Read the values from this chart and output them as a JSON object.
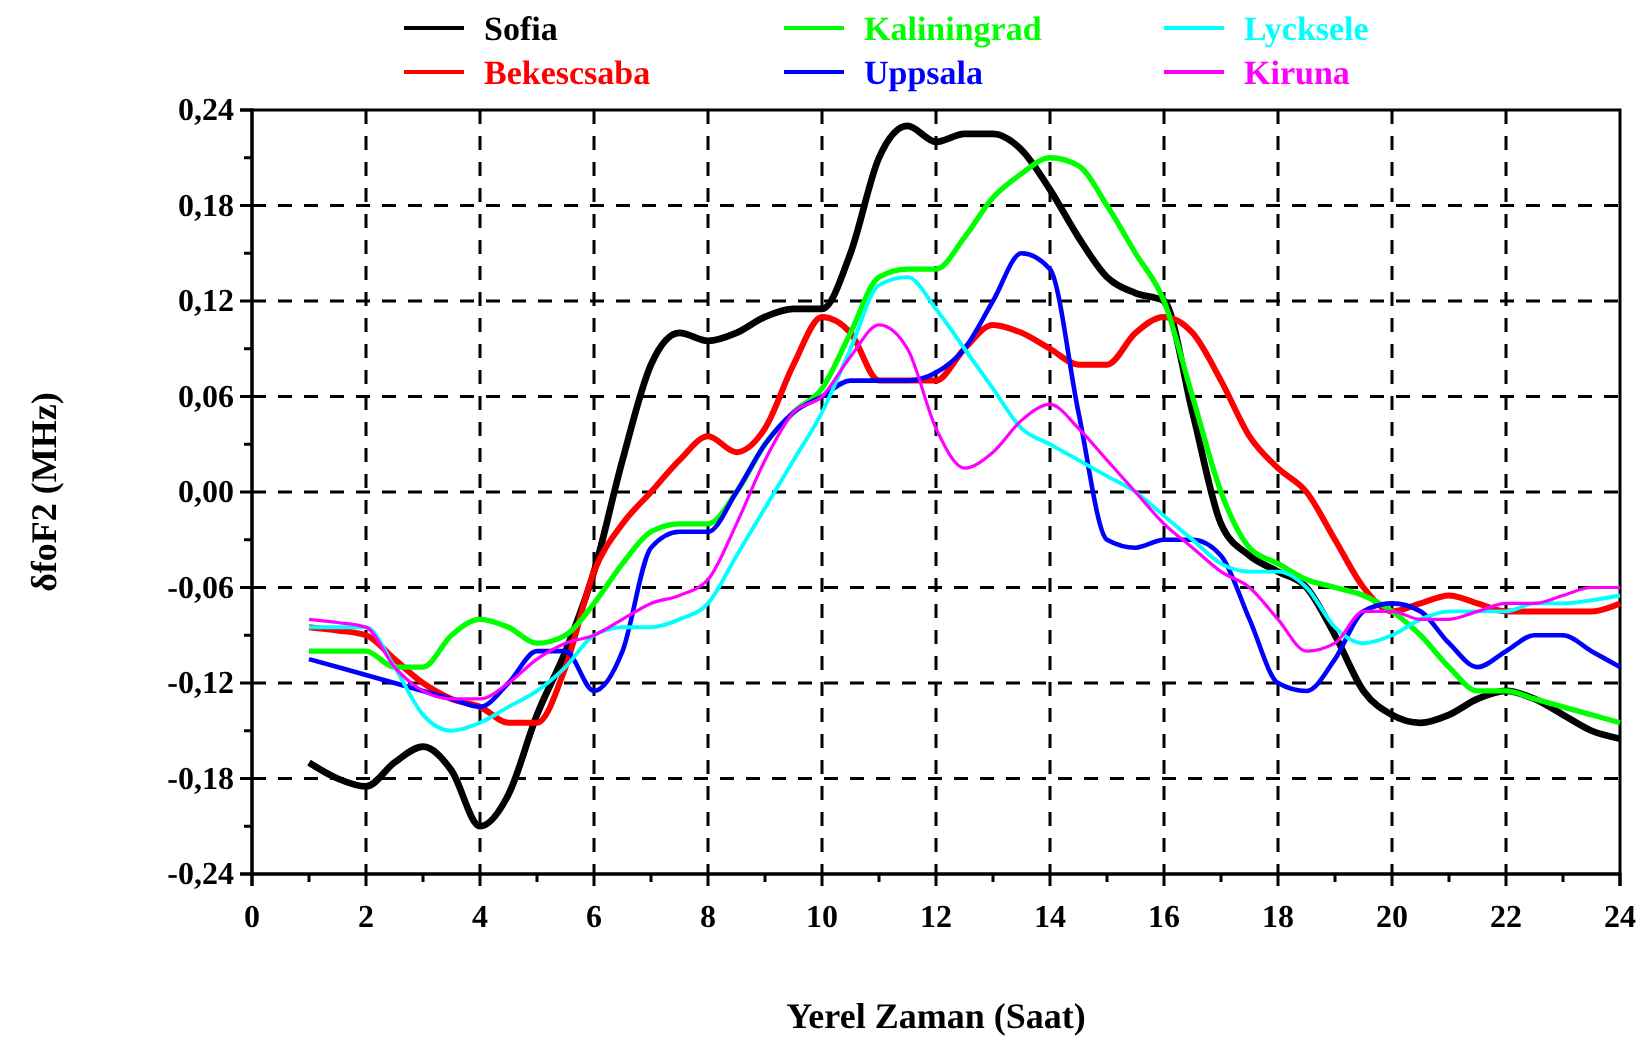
{
  "chart_data": {
    "type": "line",
    "xlabel": "Yerel Zaman (Saat)",
    "ylabel": "δfoF2 (MHz)",
    "x": [
      1,
      1.5,
      2,
      2.5,
      3,
      3.5,
      4,
      4.5,
      5,
      5.5,
      6,
      6.5,
      7,
      7.5,
      8,
      8.5,
      9,
      9.5,
      10,
      10.5,
      11,
      11.5,
      12,
      12.5,
      13,
      13.5,
      14,
      14.5,
      15,
      15.5,
      16,
      16.5,
      17,
      17.5,
      18,
      18.5,
      19,
      19.5,
      20,
      20.5,
      21,
      21.5,
      22,
      22.5,
      23,
      23.5,
      24
    ],
    "series": [
      {
        "name": "Sofia",
        "color": "#000000",
        "values": [
          -0.17,
          -0.18,
          -0.185,
          -0.17,
          -0.16,
          -0.175,
          -0.21,
          -0.19,
          -0.14,
          -0.1,
          -0.05,
          0.02,
          0.08,
          0.1,
          0.095,
          0.1,
          0.11,
          0.115,
          0.115,
          0.15,
          0.21,
          0.23,
          0.22,
          0.225,
          0.225,
          0.215,
          0.19,
          0.16,
          0.135,
          0.125,
          0.12,
          0.05,
          -0.02,
          -0.04,
          -0.05,
          -0.06,
          -0.09,
          -0.125,
          -0.14,
          -0.145,
          -0.14,
          -0.13,
          -0.125,
          -0.13,
          -0.14,
          -0.15,
          -0.155
        ]
      },
      {
        "name": "Bekescsaba",
        "color": "#ff0000",
        "values": [
          -0.085,
          -0.087,
          -0.09,
          -0.105,
          -0.12,
          -0.13,
          -0.135,
          -0.145,
          -0.145,
          -0.11,
          -0.05,
          -0.02,
          0,
          0.02,
          0.035,
          0.025,
          0.04,
          0.08,
          0.11,
          0.1,
          0.07,
          0.07,
          0.07,
          0.09,
          0.105,
          0.1,
          0.09,
          0.08,
          0.08,
          0.1,
          0.11,
          0.1,
          0.07,
          0.035,
          0.015,
          0,
          -0.03,
          -0.06,
          -0.075,
          -0.07,
          -0.065,
          -0.07,
          -0.075,
          -0.075,
          -0.075,
          -0.075,
          -0.07
        ]
      },
      {
        "name": "Kaliningrad",
        "color": "#00ff00",
        "values": [
          -0.1,
          -0.1,
          -0.1,
          -0.11,
          -0.11,
          -0.09,
          -0.08,
          -0.085,
          -0.095,
          -0.09,
          -0.07,
          -0.045,
          -0.025,
          -0.02,
          -0.02,
          0,
          0.03,
          0.05,
          0.065,
          0.1,
          0.135,
          0.14,
          0.14,
          0.16,
          0.185,
          0.2,
          0.21,
          0.205,
          0.18,
          0.15,
          0.12,
          0.06,
          0,
          -0.035,
          -0.045,
          -0.055,
          -0.06,
          -0.065,
          -0.075,
          -0.09,
          -0.11,
          -0.125,
          -0.125,
          -0.13,
          -0.135,
          -0.14,
          -0.145
        ]
      },
      {
        "name": "Uppsala",
        "color": "#0000ff",
        "values": [
          -0.105,
          -0.11,
          -0.115,
          -0.12,
          -0.125,
          -0.13,
          -0.135,
          -0.12,
          -0.1,
          -0.1,
          -0.125,
          -0.1,
          -0.035,
          -0.025,
          -0.025,
          0,
          0.03,
          0.05,
          0.06,
          0.07,
          0.07,
          0.07,
          0.075,
          0.09,
          0.12,
          0.15,
          0.14,
          0.05,
          -0.03,
          -0.035,
          -0.03,
          -0.03,
          -0.04,
          -0.08,
          -0.12,
          -0.125,
          -0.105,
          -0.075,
          -0.07,
          -0.075,
          -0.095,
          -0.11,
          -0.1,
          -0.09,
          -0.09,
          -0.1,
          -0.11
        ]
      },
      {
        "name": "Lycksele",
        "color": "#00ffff",
        "values": [
          -0.085,
          -0.085,
          -0.085,
          -0.11,
          -0.14,
          -0.15,
          -0.145,
          -0.135,
          -0.125,
          -0.11,
          -0.09,
          -0.085,
          -0.085,
          -0.08,
          -0.07,
          -0.04,
          -0.01,
          0.02,
          0.05,
          0.09,
          0.13,
          0.135,
          0.115,
          0.09,
          0.065,
          0.04,
          0.03,
          0.02,
          0.01,
          0,
          -0.015,
          -0.03,
          -0.045,
          -0.05,
          -0.05,
          -0.06,
          -0.085,
          -0.095,
          -0.09,
          -0.08,
          -0.075,
          -0.075,
          -0.075,
          -0.07,
          -0.07,
          -0.068,
          -0.065
        ]
      },
      {
        "name": "Kiruna",
        "color": "#ff00ff",
        "values": [
          -0.08,
          -0.082,
          -0.085,
          -0.11,
          -0.125,
          -0.13,
          -0.13,
          -0.12,
          -0.105,
          -0.095,
          -0.09,
          -0.08,
          -0.07,
          -0.065,
          -0.055,
          -0.02,
          0.02,
          0.05,
          0.06,
          0.085,
          0.105,
          0.09,
          0.04,
          0.015,
          0.025,
          0.045,
          0.055,
          0.04,
          0.02,
          0,
          -0.02,
          -0.035,
          -0.05,
          -0.06,
          -0.08,
          -0.1,
          -0.095,
          -0.075,
          -0.075,
          -0.08,
          -0.08,
          -0.075,
          -0.07,
          -0.07,
          -0.065,
          -0.06,
          -0.06
        ]
      }
    ],
    "xlim": [
      0,
      24
    ],
    "xticks": [
      0,
      {
        "value": 1,
        "label": null
      },
      2,
      {
        "value": 3,
        "label": null
      },
      4,
      {
        "value": 5,
        "label": null
      },
      6,
      {
        "value": 7,
        "label": null
      },
      8,
      {
        "value": 9,
        "label": null
      },
      10,
      {
        "value": 11,
        "label": null
      },
      12,
      {
        "value": 13,
        "label": null
      },
      14,
      {
        "value": 15,
        "label": null
      },
      16,
      {
        "value": 17,
        "label": null
      },
      18,
      {
        "value": 19,
        "label": null
      },
      20,
      {
        "value": 21,
        "label": null
      },
      22,
      {
        "value": 23,
        "label": null
      },
      24
    ],
    "ylim": [
      -0.24,
      0.24
    ],
    "yticks": [
      {
        "value": -0.24,
        "label": "-0,24"
      },
      {
        "value": -0.21,
        "label": null
      },
      {
        "value": -0.18,
        "label": "-0,18"
      },
      {
        "value": -0.15,
        "label": null
      },
      {
        "value": -0.12,
        "label": "-0,12"
      },
      {
        "value": -0.09,
        "label": null
      },
      {
        "value": -0.06,
        "label": "-0,06"
      },
      {
        "value": -0.03,
        "label": null
      },
      {
        "value": 0,
        "label": "0,00"
      },
      {
        "value": 0.03,
        "label": null
      },
      {
        "value": 0.06,
        "label": "0,06"
      },
      {
        "value": 0.09,
        "label": null
      },
      {
        "value": 0.12,
        "label": "0,12"
      },
      {
        "value": 0.15,
        "label": null
      },
      {
        "value": 0.18,
        "label": "0,18"
      },
      {
        "value": 0.21,
        "label": null
      },
      {
        "value": 0.24,
        "label": "0,24"
      }
    ],
    "grid": true,
    "legend": "top",
    "line_style": "solid",
    "marker": "none"
  }
}
